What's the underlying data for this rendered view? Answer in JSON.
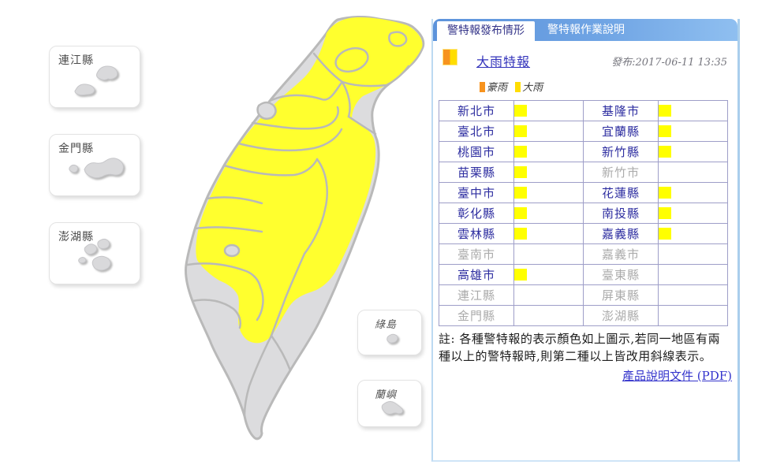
{
  "tabs": [
    {
      "label": "警特報發布情形",
      "active": true
    },
    {
      "label": "警特報作業說明",
      "active": false
    }
  ],
  "header": {
    "alert_title": "大雨特報",
    "issued": "發布:2017-06-11 13:35",
    "icon": "heavy-rain-warning-icon",
    "legend": [
      {
        "label": "豪雨",
        "color": "#f7931e"
      },
      {
        "label": "大雨",
        "color": "#ffdd00"
      }
    ]
  },
  "table": {
    "rows": [
      [
        {
          "name": "新北市",
          "warning": true
        },
        {
          "name": "基隆市",
          "warning": true
        }
      ],
      [
        {
          "name": "臺北市",
          "warning": true
        },
        {
          "name": "宜蘭縣",
          "warning": true
        }
      ],
      [
        {
          "name": "桃園市",
          "warning": true
        },
        {
          "name": "新竹縣",
          "warning": true
        }
      ],
      [
        {
          "name": "苗栗縣",
          "warning": true
        },
        {
          "name": "新竹市",
          "warning": false
        }
      ],
      [
        {
          "name": "臺中市",
          "warning": true
        },
        {
          "name": "花蓮縣",
          "warning": true
        }
      ],
      [
        {
          "name": "彰化縣",
          "warning": true
        },
        {
          "name": "南投縣",
          "warning": true
        }
      ],
      [
        {
          "name": "雲林縣",
          "warning": true
        },
        {
          "name": "嘉義縣",
          "warning": true
        }
      ],
      [
        {
          "name": "臺南市",
          "warning": false
        },
        {
          "name": "嘉義市",
          "warning": false
        }
      ],
      [
        {
          "name": "高雄市",
          "warning": true
        },
        {
          "name": "臺東縣",
          "warning": false
        }
      ],
      [
        {
          "name": "連江縣",
          "warning": false
        },
        {
          "name": "屏東縣",
          "warning": false
        }
      ],
      [
        {
          "name": "金門縣",
          "warning": false
        },
        {
          "name": "澎湖縣",
          "warning": false
        }
      ]
    ],
    "warning_color": "#ffff00"
  },
  "note": "註: 各種警特報的表示顏色如上圖示,若同一地區有兩種以上的警特報時,則第二種以上皆改用斜線表示。",
  "pdf_link": "產品說明文件 (PDF)",
  "insets": [
    {
      "label": "連江縣"
    },
    {
      "label": "金門縣"
    },
    {
      "label": "澎湖縣"
    },
    {
      "label": "綠島"
    },
    {
      "label": "蘭嶼"
    }
  ],
  "map": {
    "base_fill": "#dcdcde",
    "warning_fill": "#ffff2e",
    "border_color": "#b9b9b9"
  }
}
